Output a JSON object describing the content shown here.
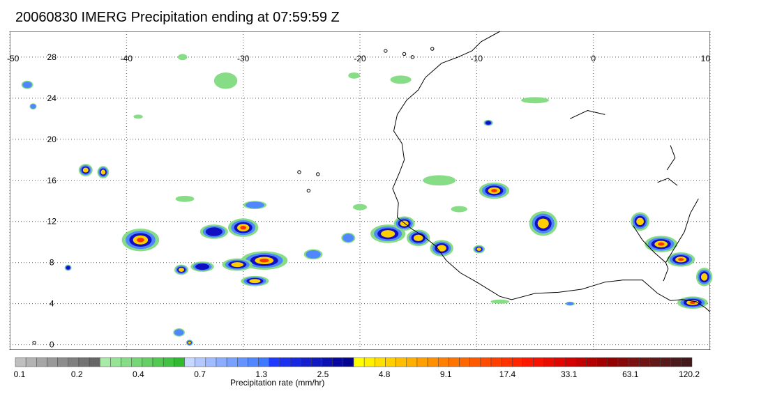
{
  "title": "20060830 IMERG Precipitation ending at 07:59:59 Z",
  "map": {
    "lon_range": [
      -50,
      10
    ],
    "lat_range": [
      -0.5,
      30.5
    ],
    "lon_labels": [
      "-50",
      "-40",
      "-30",
      "-20",
      "-10",
      "0",
      "10"
    ],
    "lon_values": [
      -50,
      -40,
      -30,
      -20,
      -10,
      0,
      10
    ],
    "lat_labels": [
      "0",
      "4",
      "8",
      "12",
      "16",
      "20",
      "24",
      "28"
    ],
    "lat_values": [
      0,
      4,
      8,
      12,
      16,
      20,
      24,
      28
    ],
    "gridlines": "dotted",
    "coastline_color": "#000000",
    "precip_cells": [
      {
        "lon": -38.8,
        "lat": 10.2,
        "rx": 1.6,
        "ry": 1.1,
        "level": 4
      },
      {
        "lon": -32.5,
        "lat": 11.0,
        "rx": 1.2,
        "ry": 0.7,
        "level": 2
      },
      {
        "lon": -30.0,
        "lat": 11.4,
        "rx": 1.3,
        "ry": 0.9,
        "level": 4
      },
      {
        "lon": -28.2,
        "lat": 8.2,
        "rx": 2.0,
        "ry": 0.9,
        "level": 4
      },
      {
        "lon": -30.5,
        "lat": 7.8,
        "rx": 1.3,
        "ry": 0.6,
        "level": 3
      },
      {
        "lon": -29.0,
        "lat": 6.2,
        "rx": 1.2,
        "ry": 0.5,
        "level": 3
      },
      {
        "lon": -33.5,
        "lat": 7.6,
        "rx": 1.0,
        "ry": 0.5,
        "level": 2
      },
      {
        "lon": -35.3,
        "lat": 7.3,
        "rx": 0.6,
        "ry": 0.5,
        "level": 3
      },
      {
        "lon": -24.0,
        "lat": 8.8,
        "rx": 0.8,
        "ry": 0.5,
        "level": 1
      },
      {
        "lon": -21.0,
        "lat": 10.4,
        "rx": 0.6,
        "ry": 0.5,
        "level": 1
      },
      {
        "lon": -17.6,
        "lat": 10.8,
        "rx": 1.5,
        "ry": 0.9,
        "level": 3
      },
      {
        "lon": -16.2,
        "lat": 11.8,
        "rx": 0.9,
        "ry": 0.7,
        "level": 3
      },
      {
        "lon": -15.0,
        "lat": 10.4,
        "rx": 1.0,
        "ry": 0.8,
        "level": 3
      },
      {
        "lon": -13.0,
        "lat": 9.4,
        "rx": 1.0,
        "ry": 0.8,
        "level": 3
      },
      {
        "lon": -9.8,
        "lat": 9.3,
        "rx": 0.5,
        "ry": 0.4,
        "level": 3
      },
      {
        "lon": -8.5,
        "lat": 15.0,
        "rx": 1.3,
        "ry": 0.8,
        "level": 4
      },
      {
        "lon": -4.3,
        "lat": 11.8,
        "rx": 1.2,
        "ry": 1.2,
        "level": 3
      },
      {
        "lon": 4.0,
        "lat": 12.0,
        "rx": 0.8,
        "ry": 0.9,
        "level": 3
      },
      {
        "lon": 5.8,
        "lat": 9.8,
        "rx": 1.4,
        "ry": 0.8,
        "level": 4
      },
      {
        "lon": 7.5,
        "lat": 8.3,
        "rx": 1.2,
        "ry": 0.7,
        "level": 4
      },
      {
        "lon": 9.5,
        "lat": 6.6,
        "rx": 0.7,
        "ry": 0.9,
        "level": 3
      },
      {
        "lon": 8.5,
        "lat": 4.1,
        "rx": 1.3,
        "ry": 0.6,
        "level": 4
      },
      {
        "lon": -43.5,
        "lat": 17.0,
        "rx": 0.6,
        "ry": 0.6,
        "level": 3
      },
      {
        "lon": -42.0,
        "lat": 16.8,
        "rx": 0.5,
        "ry": 0.6,
        "level": 3
      },
      {
        "lon": -9.0,
        "lat": 21.6,
        "rx": 0.4,
        "ry": 0.3,
        "level": 2
      },
      {
        "lon": -45.0,
        "lat": 7.5,
        "rx": 0.3,
        "ry": 0.3,
        "level": 2
      },
      {
        "lon": -34.6,
        "lat": 0.2,
        "rx": 0.3,
        "ry": 0.3,
        "level": 3
      },
      {
        "lon": -35.5,
        "lat": 1.2,
        "rx": 0.5,
        "ry": 0.4,
        "level": 1
      },
      {
        "lon": -35.0,
        "lat": 14.2,
        "rx": 0.8,
        "ry": 0.3,
        "level": 0
      },
      {
        "lon": -29.0,
        "lat": 13.6,
        "rx": 1.0,
        "ry": 0.4,
        "level": 1
      },
      {
        "lon": -20.0,
        "lat": 13.4,
        "rx": 0.6,
        "ry": 0.3,
        "level": 0
      },
      {
        "lon": -11.5,
        "lat": 13.2,
        "rx": 0.7,
        "ry": 0.3,
        "level": 0
      },
      {
        "lon": -13.2,
        "lat": 16.0,
        "rx": 1.4,
        "ry": 0.5,
        "level": 0
      },
      {
        "lon": -5.0,
        "lat": 23.8,
        "rx": 1.2,
        "ry": 0.3,
        "level": 0
      },
      {
        "lon": -31.5,
        "lat": 25.7,
        "rx": 1.0,
        "ry": 0.8,
        "level": 0
      },
      {
        "lon": -20.5,
        "lat": 26.2,
        "rx": 0.5,
        "ry": 0.3,
        "level": 0
      },
      {
        "lon": -16.5,
        "lat": 25.8,
        "rx": 0.9,
        "ry": 0.4,
        "level": 0
      },
      {
        "lon": -35.2,
        "lat": 28.0,
        "rx": 0.4,
        "ry": 0.3,
        "level": 0
      },
      {
        "lon": -48.5,
        "lat": 25.3,
        "rx": 0.5,
        "ry": 0.4,
        "level": 1
      },
      {
        "lon": -48.0,
        "lat": 23.2,
        "rx": 0.3,
        "ry": 0.3,
        "level": 1
      },
      {
        "lon": -39.0,
        "lat": 22.2,
        "rx": 0.4,
        "ry": 0.2,
        "level": 0
      },
      {
        "lon": -2.0,
        "lat": 4.0,
        "rx": 0.4,
        "ry": 0.2,
        "level": 1
      },
      {
        "lon": -8.0,
        "lat": 4.2,
        "rx": 0.8,
        "ry": 0.2,
        "level": 0
      }
    ]
  },
  "colorbar": {
    "label": "Precipitation rate (mm/hr)",
    "tick_labels": [
      "0.1",
      "0.2",
      "0.4",
      "0.7",
      "1.3",
      "2.5",
      "4.8",
      "9.1",
      "17.4",
      "33.1",
      "63.1",
      "120.2"
    ],
    "colors": [
      "#bfbfbf",
      "#b3b3b3",
      "#a6a6a6",
      "#999999",
      "#8c8c8c",
      "#7f7f7f",
      "#737373",
      "#666666",
      "#a8eaa8",
      "#97e497",
      "#86dd86",
      "#75d675",
      "#64cf64",
      "#53c853",
      "#42c142",
      "#31ba31",
      "#c8d7ff",
      "#b4c8ff",
      "#a0bbff",
      "#8cadff",
      "#78a0ff",
      "#6493ff",
      "#5086ff",
      "#3c79ff",
      "#2038ff",
      "#1c30f0",
      "#1828e0",
      "#1420d0",
      "#1018c0",
      "#0c10b0",
      "#0808a0",
      "#040490",
      "#ffff00",
      "#ffef00",
      "#ffdf00",
      "#ffcf00",
      "#ffbf00",
      "#ffaf00",
      "#ff9f00",
      "#ff8f00",
      "#ff8000",
      "#ff7300",
      "#ff6600",
      "#ff5900",
      "#ff4c00",
      "#ff3f00",
      "#ff3200",
      "#ff2500",
      "#ff1800",
      "#f51200",
      "#eb0c00",
      "#e00600",
      "#d20000",
      "#c20000",
      "#b20000",
      "#a20000",
      "#920000",
      "#860808",
      "#7a1010",
      "#6e1414",
      "#621818",
      "#561a1a",
      "#4c1a1a",
      "#421818"
    ],
    "level_colors": [
      "#86dd86",
      "#5086ff",
      "#1010c0",
      "#ffcf00",
      "#ff3200"
    ]
  }
}
